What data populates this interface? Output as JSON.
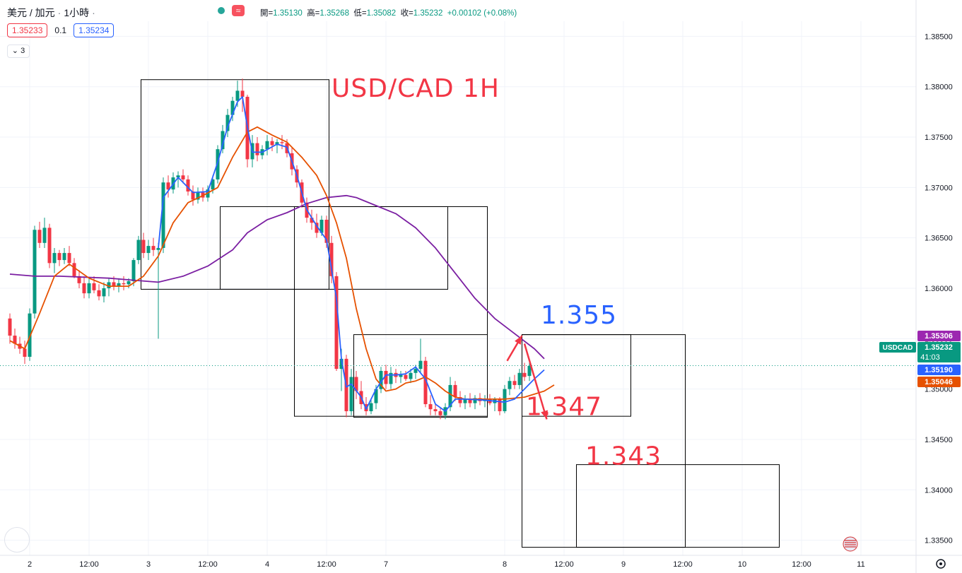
{
  "header": {
    "symbol": "美元 / 加元",
    "separator": "·",
    "interval": "1小時",
    "ohlc": {
      "open_label": "開=",
      "open": "1.35130",
      "high_label": "高=",
      "high": "1.35268",
      "low_label": "低=",
      "low": "1.35082",
      "close_label": "收=",
      "close": "1.35232",
      "change": "+0.00102 (+0.08%)"
    }
  },
  "quote": {
    "sell": "1.35233",
    "spread": "0.1",
    "buy": "1.35234"
  },
  "indicators_count": "3",
  "live_icon": "≈",
  "chart_data": {
    "type": "candlestick",
    "title": "USD/CAD 1H",
    "ylim": [
      1.3335,
      1.3865
    ],
    "yticks": [
      "1.38500",
      "1.38000",
      "1.37500",
      "1.37000",
      "1.36500",
      "1.36000",
      "1.35500",
      "1.35000",
      "1.34500",
      "1.34000",
      "1.33500"
    ],
    "xticks": [
      {
        "label": "2",
        "bar": 4
      },
      {
        "label": "12:00",
        "bar": 16
      },
      {
        "label": "3",
        "bar": 28
      },
      {
        "label": "12:00",
        "bar": 40
      },
      {
        "label": "4",
        "bar": 52
      },
      {
        "label": "12:00",
        "bar": 64
      },
      {
        "label": "7",
        "bar": 76
      },
      {
        "label": "8",
        "bar": 100
      },
      {
        "label": "12:00",
        "bar": 112
      },
      {
        "label": "9",
        "bar": 124
      },
      {
        "label": "12:00",
        "bar": 136
      },
      {
        "label": "10",
        "bar": 148
      },
      {
        "label": "12:00",
        "bar": 160
      },
      {
        "label": "11",
        "bar": 172
      }
    ],
    "candles": [
      [
        1.357,
        1.3575,
        1.3545,
        1.3553
      ],
      [
        1.3553,
        1.356,
        1.354,
        1.3545
      ],
      [
        1.3545,
        1.3552,
        1.3535,
        1.354
      ],
      [
        1.354,
        1.3548,
        1.3525,
        1.3532
      ],
      [
        1.3532,
        1.358,
        1.3528,
        1.3575
      ],
      [
        1.3575,
        1.3662,
        1.357,
        1.3658
      ],
      [
        1.3658,
        1.3666,
        1.364,
        1.3645
      ],
      [
        1.3645,
        1.367,
        1.364,
        1.366
      ],
      [
        1.366,
        1.3664,
        1.362,
        1.3625
      ],
      [
        1.3625,
        1.364,
        1.3615,
        1.3635
      ],
      [
        1.3635,
        1.3638,
        1.3622,
        1.3628
      ],
      [
        1.3628,
        1.364,
        1.3624,
        1.3635
      ],
      [
        1.3635,
        1.3642,
        1.3622,
        1.3625
      ],
      [
        1.3625,
        1.363,
        1.361,
        1.3612
      ],
      [
        1.3612,
        1.3618,
        1.36,
        1.3605
      ],
      [
        1.3605,
        1.3612,
        1.359,
        1.3595
      ],
      [
        1.3595,
        1.361,
        1.359,
        1.3605
      ],
      [
        1.3605,
        1.3612,
        1.3595,
        1.3598
      ],
      [
        1.3598,
        1.3604,
        1.3588,
        1.3592
      ],
      [
        1.3592,
        1.3606,
        1.3586,
        1.36
      ],
      [
        1.36,
        1.361,
        1.3592,
        1.3606
      ],
      [
        1.3606,
        1.3612,
        1.3598,
        1.3602
      ],
      [
        1.3602,
        1.361,
        1.3596,
        1.3605
      ],
      [
        1.3605,
        1.3612,
        1.3598,
        1.3604
      ],
      [
        1.3604,
        1.361,
        1.36,
        1.3607
      ],
      [
        1.3607,
        1.363,
        1.3602,
        1.3628
      ],
      [
        1.3628,
        1.3652,
        1.3624,
        1.3648
      ],
      [
        1.3648,
        1.3655,
        1.363,
        1.3635
      ],
      [
        1.3635,
        1.3648,
        1.3628,
        1.3642
      ],
      [
        1.3642,
        1.365,
        1.3632,
        1.3638
      ],
      [
        1.3638,
        1.3645,
        1.355,
        1.364
      ],
      [
        1.364,
        1.371,
        1.3635,
        1.3705
      ],
      [
        1.3705,
        1.3712,
        1.369,
        1.3698
      ],
      [
        1.3698,
        1.3715,
        1.3694,
        1.371
      ],
      [
        1.371,
        1.3716,
        1.37,
        1.3712
      ],
      [
        1.3712,
        1.3718,
        1.3704,
        1.3708
      ],
      [
        1.3708,
        1.3712,
        1.3692,
        1.3696
      ],
      [
        1.3696,
        1.3702,
        1.3682,
        1.3688
      ],
      [
        1.3688,
        1.37,
        1.3684,
        1.3695
      ],
      [
        1.3695,
        1.37,
        1.3686,
        1.369
      ],
      [
        1.369,
        1.3702,
        1.3686,
        1.3698
      ],
      [
        1.3698,
        1.3712,
        1.3694,
        1.3708
      ],
      [
        1.3708,
        1.3742,
        1.3704,
        1.3738
      ],
      [
        1.3738,
        1.3762,
        1.3734,
        1.3756
      ],
      [
        1.3756,
        1.3778,
        1.375,
        1.3772
      ],
      [
        1.3772,
        1.379,
        1.3766,
        1.3786
      ],
      [
        1.3786,
        1.3806,
        1.378,
        1.3796
      ],
      [
        1.3796,
        1.3808,
        1.3775,
        1.379
      ],
      [
        1.379,
        1.3792,
        1.372,
        1.3728
      ],
      [
        1.3728,
        1.3752,
        1.372,
        1.3744
      ],
      [
        1.3744,
        1.375,
        1.3726,
        1.3732
      ],
      [
        1.3732,
        1.3742,
        1.3728,
        1.3738
      ],
      [
        1.3738,
        1.3752,
        1.3732,
        1.3746
      ],
      [
        1.3746,
        1.375,
        1.3736,
        1.3742
      ],
      [
        1.3742,
        1.3748,
        1.3734,
        1.3745
      ],
      [
        1.3745,
        1.3752,
        1.3738,
        1.3744
      ],
      [
        1.3744,
        1.3748,
        1.373,
        1.3734
      ],
      [
        1.3734,
        1.374,
        1.3712,
        1.3718
      ],
      [
        1.3718,
        1.3722,
        1.37,
        1.3705
      ],
      [
        1.3705,
        1.3708,
        1.368,
        1.3685
      ],
      [
        1.3685,
        1.369,
        1.3665,
        1.367
      ],
      [
        1.367,
        1.3678,
        1.3658,
        1.3665
      ],
      [
        1.3665,
        1.3674,
        1.365,
        1.3655
      ],
      [
        1.3655,
        1.3672,
        1.3652,
        1.3668
      ],
      [
        1.3668,
        1.3672,
        1.364,
        1.3645
      ],
      [
        1.3645,
        1.3652,
        1.3605,
        1.3612
      ],
      [
        1.3612,
        1.3616,
        1.3518,
        1.352
      ],
      [
        1.352,
        1.354,
        1.3498,
        1.353
      ],
      [
        1.353,
        1.3534,
        1.3472,
        1.3478
      ],
      [
        1.3478,
        1.352,
        1.3474,
        1.3512
      ],
      [
        1.3512,
        1.3518,
        1.349,
        1.3498
      ],
      [
        1.3498,
        1.3508,
        1.348,
        1.3485
      ],
      [
        1.3485,
        1.3492,
        1.3474,
        1.3478
      ],
      [
        1.3478,
        1.349,
        1.3475,
        1.3486
      ],
      [
        1.3486,
        1.3504,
        1.348,
        1.35
      ],
      [
        1.35,
        1.3522,
        1.3496,
        1.3518
      ],
      [
        1.3518,
        1.3524,
        1.35,
        1.3505
      ],
      [
        1.3505,
        1.3522,
        1.35,
        1.3516
      ],
      [
        1.3516,
        1.352,
        1.3506,
        1.3512
      ],
      [
        1.3512,
        1.3518,
        1.3506,
        1.3514
      ],
      [
        1.3514,
        1.3518,
        1.3508,
        1.351
      ],
      [
        1.351,
        1.352,
        1.3506,
        1.3516
      ],
      [
        1.3516,
        1.3524,
        1.351,
        1.352
      ],
      [
        1.352,
        1.355,
        1.3516,
        1.3528
      ],
      [
        1.3528,
        1.3532,
        1.3482,
        1.3485
      ],
      [
        1.3485,
        1.3494,
        1.3474,
        1.348
      ],
      [
        1.348,
        1.3486,
        1.3474,
        1.3478
      ],
      [
        1.3478,
        1.3482,
        1.347,
        1.3474
      ],
      [
        1.3474,
        1.3486,
        1.347,
        1.3482
      ],
      [
        1.3482,
        1.3512,
        1.3478,
        1.3504
      ],
      [
        1.3504,
        1.3508,
        1.3488,
        1.3492
      ],
      [
        1.3492,
        1.3498,
        1.3482,
        1.3486
      ],
      [
        1.3486,
        1.3494,
        1.348,
        1.349
      ],
      [
        1.349,
        1.3496,
        1.3482,
        1.3486
      ],
      [
        1.3486,
        1.3494,
        1.348,
        1.3491
      ],
      [
        1.3491,
        1.3496,
        1.3484,
        1.3488
      ],
      [
        1.3488,
        1.3494,
        1.3482,
        1.349
      ],
      [
        1.349,
        1.3495,
        1.3484,
        1.3486
      ],
      [
        1.3486,
        1.3492,
        1.3478,
        1.349
      ],
      [
        1.349,
        1.3492,
        1.3474,
        1.3478
      ],
      [
        1.3478,
        1.3504,
        1.3476,
        1.35
      ],
      [
        1.35,
        1.3512,
        1.3494,
        1.3508
      ],
      [
        1.3508,
        1.3514,
        1.35,
        1.3504
      ],
      [
        1.3504,
        1.352,
        1.35,
        1.3516
      ],
      [
        1.3516,
        1.3526,
        1.3508,
        1.3512
      ],
      [
        1.3513,
        1.3527,
        1.3508,
        1.3523
      ]
    ],
    "ma_orange": [
      [
        0,
        1.3548
      ],
      [
        3,
        1.354
      ],
      [
        6,
        1.3575
      ],
      [
        9,
        1.3612
      ],
      [
        12,
        1.3624
      ],
      [
        16,
        1.361
      ],
      [
        20,
        1.3602
      ],
      [
        24,
        1.3602
      ],
      [
        27,
        1.3612
      ],
      [
        30,
        1.3632
      ],
      [
        33,
        1.3665
      ],
      [
        36,
        1.3685
      ],
      [
        39,
        1.3692
      ],
      [
        42,
        1.37
      ],
      [
        45,
        1.373
      ],
      [
        48,
        1.3755
      ],
      [
        50,
        1.376
      ],
      [
        53,
        1.3752
      ],
      [
        56,
        1.3745
      ],
      [
        59,
        1.373
      ],
      [
        62,
        1.3712
      ],
      [
        64,
        1.3692
      ],
      [
        66,
        1.3665
      ],
      [
        68,
        1.363
      ],
      [
        70,
        1.358
      ],
      [
        72,
        1.354
      ],
      [
        74,
        1.351
      ],
      [
        76,
        1.3498
      ],
      [
        78,
        1.35
      ],
      [
        80,
        1.3506
      ],
      [
        82,
        1.3508
      ],
      [
        84,
        1.3512
      ],
      [
        86,
        1.3506
      ],
      [
        88,
        1.3498
      ],
      [
        90,
        1.3492
      ],
      [
        92,
        1.349
      ],
      [
        96,
        1.349
      ],
      [
        100,
        1.349
      ],
      [
        104,
        1.3492
      ],
      [
        108,
        1.3498
      ],
      [
        110,
        1.3504
      ]
    ],
    "ma_blue": [
      [
        30,
        1.364
      ],
      [
        31,
        1.369
      ],
      [
        34,
        1.371
      ],
      [
        37,
        1.3695
      ],
      [
        40,
        1.3696
      ],
      [
        42,
        1.3725
      ],
      [
        44,
        1.376
      ],
      [
        46,
        1.3785
      ],
      [
        47,
        1.379
      ],
      [
        48,
        1.376
      ],
      [
        49,
        1.3735
      ],
      [
        51,
        1.3735
      ],
      [
        54,
        1.3743
      ],
      [
        56,
        1.374
      ],
      [
        58,
        1.3712
      ],
      [
        60,
        1.3678
      ],
      [
        62,
        1.3662
      ],
      [
        64,
        1.3648
      ],
      [
        66,
        1.359
      ],
      [
        67,
        1.353
      ],
      [
        68,
        1.3502
      ],
      [
        69,
        1.3505
      ],
      [
        71,
        1.3492
      ],
      [
        72,
        1.348
      ],
      [
        74,
        1.35
      ],
      [
        76,
        1.3514
      ],
      [
        78,
        1.3514
      ],
      [
        80,
        1.3515
      ],
      [
        82,
        1.3522
      ],
      [
        84,
        1.351
      ],
      [
        86,
        1.3485
      ],
      [
        88,
        1.3478
      ],
      [
        90,
        1.349
      ],
      [
        92,
        1.349
      ],
      [
        96,
        1.3489
      ],
      [
        100,
        1.3487
      ],
      [
        102,
        1.349
      ],
      [
        104,
        1.35
      ],
      [
        106,
        1.351
      ],
      [
        108,
        1.3519
      ]
    ],
    "ma_purple": [
      [
        0,
        1.3614
      ],
      [
        5,
        1.3612
      ],
      [
        10,
        1.3612
      ],
      [
        15,
        1.3611
      ],
      [
        20,
        1.361
      ],
      [
        25,
        1.3608
      ],
      [
        30,
        1.3606
      ],
      [
        35,
        1.3612
      ],
      [
        40,
        1.3622
      ],
      [
        45,
        1.3638
      ],
      [
        48,
        1.3655
      ],
      [
        52,
        1.3668
      ],
      [
        56,
        1.3675
      ],
      [
        60,
        1.3684
      ],
      [
        64,
        1.369
      ],
      [
        68,
        1.3692
      ],
      [
        70,
        1.369
      ],
      [
        74,
        1.3682
      ],
      [
        78,
        1.3674
      ],
      [
        82,
        1.366
      ],
      [
        86,
        1.364
      ],
      [
        90,
        1.3615
      ],
      [
        94,
        1.359
      ],
      [
        98,
        1.357
      ],
      [
        102,
        1.3555
      ],
      [
        106,
        1.354
      ],
      [
        108,
        1.353
      ]
    ],
    "boxes": [
      {
        "b0": 26.5,
        "b1": 64.5,
        "top": 1.3807,
        "bottom": 1.3599
      },
      {
        "b0": 42.5,
        "b1": 88.5,
        "top": 1.3681,
        "bottom": 1.3599
      },
      {
        "b0": 57.5,
        "b1": 96.5,
        "top": 1.3681,
        "bottom": 1.3473
      },
      {
        "b0": 69.5,
        "b1": 96.5,
        "top": 1.3554,
        "bottom": 1.3472
      },
      {
        "b0": 103.5,
        "b1": 125.5,
        "top": 1.3554,
        "bottom": 1.3473
      },
      {
        "b0": 103.5,
        "b1": 136.5,
        "top": 1.3554,
        "bottom": 1.3343
      },
      {
        "b0": 114.5,
        "b1": 155.5,
        "top": 1.3425,
        "bottom": 1.3343
      }
    ],
    "arrows": [
      {
        "from": [
          100.5,
          1.3528
        ],
        "to": [
          103.5,
          1.3553
        ]
      },
      {
        "from": [
          104,
          1.3545
        ],
        "to": [
          108.5,
          1.347
        ]
      }
    ],
    "annotations": [
      {
        "text": "USD/CAD 1H",
        "bar": 82,
        "price": 1.379,
        "color": "#f23645",
        "size": 36
      },
      {
        "text": "1.355",
        "bar": 115,
        "price": 1.3565,
        "color": "#2962ff",
        "size": 36
      },
      {
        "text": "1.347",
        "bar": 112,
        "price": 1.3474,
        "color": "#f23645",
        "size": 36
      },
      {
        "text": "1.343",
        "bar": 124,
        "price": 1.3425,
        "color": "#f23645",
        "size": 36
      }
    ],
    "price_labels": [
      {
        "text": "1.35306",
        "price": 1.35306,
        "color": "#9c27b0"
      },
      {
        "text": "1.35232",
        "price": 1.35232,
        "color": "#089981",
        "sub": "41:03",
        "symbol": "USDCAD"
      },
      {
        "text": "1.35190",
        "price": 1.3519,
        "color": "#2962ff"
      },
      {
        "text": "1.35046",
        "price": 1.35046,
        "color": "#e65100"
      }
    ],
    "colors": {
      "up": "#089981",
      "down": "#f23645",
      "orange": "#e65100",
      "blue": "#2962ff",
      "purple": "#7b1fa2",
      "grid": "#f0f3fa"
    }
  }
}
